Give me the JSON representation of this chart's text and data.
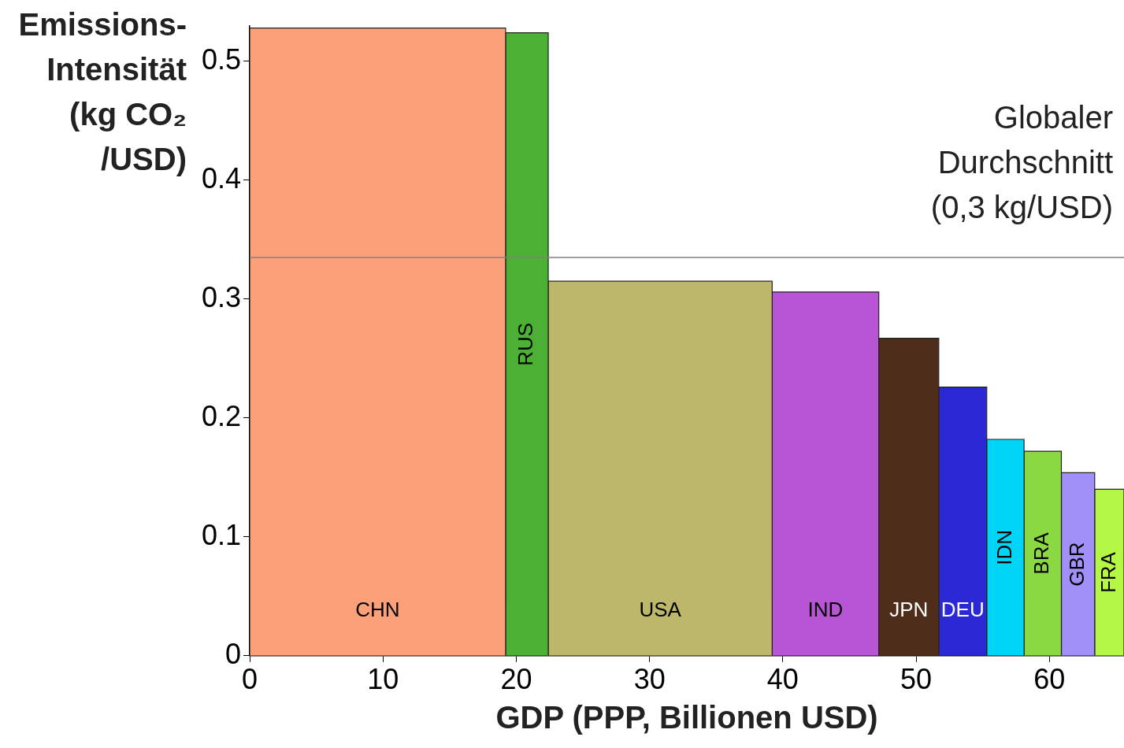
{
  "chart_data": {
    "type": "histogram",
    "xlabel": "GDP (PPP, Billionen USD)",
    "ylabel": "Emissions-Intensität (kg CO₂ /USD)",
    "bins": [
      0,
      19.2,
      22.4,
      39.2,
      47.2,
      51.7,
      55.3,
      58.1,
      60.9,
      63.4,
      65.6
    ],
    "values": [
      0.528,
      0.524,
      0.315,
      0.306,
      0.267,
      0.226,
      0.182,
      0.172,
      0.154,
      0.14
    ],
    "colors": [
      "#fca07a",
      "#4cb034",
      "#bdb76b",
      "#b855d4",
      "#4f2d1b",
      "#2b29d6",
      "#00d5f7",
      "#8bd942",
      "#a190f7",
      "#b5f745"
    ],
    "xlim": [
      0,
      65.6
    ],
    "xticks": [
      0,
      10,
      20,
      30,
      40,
      50,
      60
    ],
    "ylim": [
      0,
      0.53
    ],
    "yticks": [
      0,
      0.1,
      0.2,
      0.3,
      0.4,
      0.5
    ],
    "grid": false,
    "legend": false,
    "ref_lines": [
      {
        "axis": "y",
        "value": 0.335,
        "label": "Globaler Durchschnitt (0,3 kg/USD)",
        "color": "#808080"
      }
    ],
    "categories": [
      "CHN",
      "RUS",
      "USA",
      "IND",
      "JPN",
      "DEU",
      "IDN",
      "BRA",
      "GBR",
      "FRA"
    ]
  }
}
